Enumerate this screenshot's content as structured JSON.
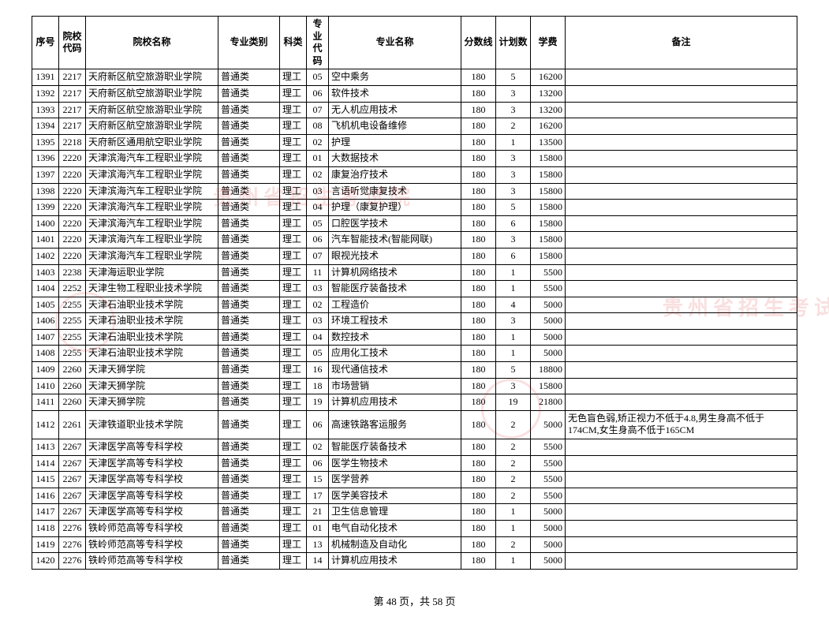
{
  "headers": {
    "seq": "序号",
    "code": "院校代码",
    "school": "院校名称",
    "type": "专业类别",
    "subj": "科类",
    "mcode": "专业代码",
    "major": "专业名称",
    "score": "分数线",
    "plan": "计划数",
    "fee": "学费",
    "note": "备注"
  },
  "rows": [
    {
      "seq": "1391",
      "code": "2217",
      "school": "天府新区航空旅游职业学院",
      "type": "普通类",
      "subj": "理工",
      "mcode": "05",
      "major": "空中乘务",
      "score": "180",
      "plan": "5",
      "fee": "16200",
      "note": ""
    },
    {
      "seq": "1392",
      "code": "2217",
      "school": "天府新区航空旅游职业学院",
      "type": "普通类",
      "subj": "理工",
      "mcode": "06",
      "major": "软件技术",
      "score": "180",
      "plan": "3",
      "fee": "13200",
      "note": ""
    },
    {
      "seq": "1393",
      "code": "2217",
      "school": "天府新区航空旅游职业学院",
      "type": "普通类",
      "subj": "理工",
      "mcode": "07",
      "major": "无人机应用技术",
      "score": "180",
      "plan": "3",
      "fee": "13200",
      "note": ""
    },
    {
      "seq": "1394",
      "code": "2217",
      "school": "天府新区航空旅游职业学院",
      "type": "普通类",
      "subj": "理工",
      "mcode": "08",
      "major": "飞机机电设备维修",
      "score": "180",
      "plan": "2",
      "fee": "16200",
      "note": ""
    },
    {
      "seq": "1395",
      "code": "2218",
      "school": "天府新区通用航空职业学院",
      "type": "普通类",
      "subj": "理工",
      "mcode": "02",
      "major": "护理",
      "score": "180",
      "plan": "1",
      "fee": "13500",
      "note": ""
    },
    {
      "seq": "1396",
      "code": "2220",
      "school": "天津滨海汽车工程职业学院",
      "type": "普通类",
      "subj": "理工",
      "mcode": "01",
      "major": "大数据技术",
      "score": "180",
      "plan": "3",
      "fee": "15800",
      "note": ""
    },
    {
      "seq": "1397",
      "code": "2220",
      "school": "天津滨海汽车工程职业学院",
      "type": "普通类",
      "subj": "理工",
      "mcode": "02",
      "major": "康复治疗技术",
      "score": "180",
      "plan": "3",
      "fee": "15800",
      "note": ""
    },
    {
      "seq": "1398",
      "code": "2220",
      "school": "天津滨海汽车工程职业学院",
      "type": "普通类",
      "subj": "理工",
      "mcode": "03",
      "major": "言语听觉康复技术",
      "score": "180",
      "plan": "3",
      "fee": "15800",
      "note": ""
    },
    {
      "seq": "1399",
      "code": "2220",
      "school": "天津滨海汽车工程职业学院",
      "type": "普通类",
      "subj": "理工",
      "mcode": "04",
      "major": "护理（康复护理）",
      "score": "180",
      "plan": "5",
      "fee": "15800",
      "note": ""
    },
    {
      "seq": "1400",
      "code": "2220",
      "school": "天津滨海汽车工程职业学院",
      "type": "普通类",
      "subj": "理工",
      "mcode": "05",
      "major": "口腔医学技术",
      "score": "180",
      "plan": "6",
      "fee": "15800",
      "note": ""
    },
    {
      "seq": "1401",
      "code": "2220",
      "school": "天津滨海汽车工程职业学院",
      "type": "普通类",
      "subj": "理工",
      "mcode": "06",
      "major": "汽车智能技术(智能网联)",
      "score": "180",
      "plan": "3",
      "fee": "15800",
      "note": ""
    },
    {
      "seq": "1402",
      "code": "2220",
      "school": "天津滨海汽车工程职业学院",
      "type": "普通类",
      "subj": "理工",
      "mcode": "07",
      "major": "眼视光技术",
      "score": "180",
      "plan": "6",
      "fee": "15800",
      "note": ""
    },
    {
      "seq": "1403",
      "code": "2238",
      "school": "天津海运职业学院",
      "type": "普通类",
      "subj": "理工",
      "mcode": "11",
      "major": "计算机网络技术",
      "score": "180",
      "plan": "1",
      "fee": "5500",
      "note": ""
    },
    {
      "seq": "1404",
      "code": "2252",
      "school": "天津生物工程职业技术学院",
      "type": "普通类",
      "subj": "理工",
      "mcode": "03",
      "major": "智能医疗装备技术",
      "score": "180",
      "plan": "1",
      "fee": "5500",
      "note": ""
    },
    {
      "seq": "1405",
      "code": "2255",
      "school": "天津石油职业技术学院",
      "type": "普通类",
      "subj": "理工",
      "mcode": "02",
      "major": "工程造价",
      "score": "180",
      "plan": "4",
      "fee": "5000",
      "note": ""
    },
    {
      "seq": "1406",
      "code": "2255",
      "school": "天津石油职业技术学院",
      "type": "普通类",
      "subj": "理工",
      "mcode": "03",
      "major": "环境工程技术",
      "score": "180",
      "plan": "3",
      "fee": "5000",
      "note": ""
    },
    {
      "seq": "1407",
      "code": "2255",
      "school": "天津石油职业技术学院",
      "type": "普通类",
      "subj": "理工",
      "mcode": "04",
      "major": "数控技术",
      "score": "180",
      "plan": "1",
      "fee": "5000",
      "note": ""
    },
    {
      "seq": "1408",
      "code": "2255",
      "school": "天津石油职业技术学院",
      "type": "普通类",
      "subj": "理工",
      "mcode": "05",
      "major": "应用化工技术",
      "score": "180",
      "plan": "1",
      "fee": "5000",
      "note": ""
    },
    {
      "seq": "1409",
      "code": "2260",
      "school": "天津天狮学院",
      "type": "普通类",
      "subj": "理工",
      "mcode": "16",
      "major": "现代通信技术",
      "score": "180",
      "plan": "5",
      "fee": "18800",
      "note": ""
    },
    {
      "seq": "1410",
      "code": "2260",
      "school": "天津天狮学院",
      "type": "普通类",
      "subj": "理工",
      "mcode": "18",
      "major": "市场营销",
      "score": "180",
      "plan": "3",
      "fee": "15800",
      "note": ""
    },
    {
      "seq": "1411",
      "code": "2260",
      "school": "天津天狮学院",
      "type": "普通类",
      "subj": "理工",
      "mcode": "19",
      "major": "计算机应用技术",
      "score": "180",
      "plan": "19",
      "fee": "21800",
      "note": ""
    },
    {
      "seq": "1412",
      "code": "2261",
      "school": "天津铁道职业技术学院",
      "type": "普通类",
      "subj": "理工",
      "mcode": "06",
      "major": "高速铁路客运服务",
      "score": "180",
      "plan": "2",
      "fee": "5000",
      "note": "无色盲色弱,矫正视力不低于4.8,男生身高不低于174CM,女生身高不低于165CM"
    },
    {
      "seq": "1413",
      "code": "2267",
      "school": "天津医学高等专科学校",
      "type": "普通类",
      "subj": "理工",
      "mcode": "02",
      "major": "智能医疗装备技术",
      "score": "180",
      "plan": "2",
      "fee": "5500",
      "note": ""
    },
    {
      "seq": "1414",
      "code": "2267",
      "school": "天津医学高等专科学校",
      "type": "普通类",
      "subj": "理工",
      "mcode": "06",
      "major": "医学生物技术",
      "score": "180",
      "plan": "2",
      "fee": "5500",
      "note": ""
    },
    {
      "seq": "1415",
      "code": "2267",
      "school": "天津医学高等专科学校",
      "type": "普通类",
      "subj": "理工",
      "mcode": "15",
      "major": "医学营养",
      "score": "180",
      "plan": "2",
      "fee": "5500",
      "note": ""
    },
    {
      "seq": "1416",
      "code": "2267",
      "school": "天津医学高等专科学校",
      "type": "普通类",
      "subj": "理工",
      "mcode": "17",
      "major": "医学美容技术",
      "score": "180",
      "plan": "2",
      "fee": "5500",
      "note": ""
    },
    {
      "seq": "1417",
      "code": "2267",
      "school": "天津医学高等专科学校",
      "type": "普通类",
      "subj": "理工",
      "mcode": "21",
      "major": "卫生信息管理",
      "score": "180",
      "plan": "1",
      "fee": "5000",
      "note": ""
    },
    {
      "seq": "1418",
      "code": "2276",
      "school": "铁岭师范高等专科学校",
      "type": "普通类",
      "subj": "理工",
      "mcode": "01",
      "major": "电气自动化技术",
      "score": "180",
      "plan": "1",
      "fee": "5000",
      "note": ""
    },
    {
      "seq": "1419",
      "code": "2276",
      "school": "铁岭师范高等专科学校",
      "type": "普通类",
      "subj": "理工",
      "mcode": "13",
      "major": "机械制造及自动化",
      "score": "180",
      "plan": "2",
      "fee": "5000",
      "note": ""
    },
    {
      "seq": "1420",
      "code": "2276",
      "school": "铁岭师范高等专科学校",
      "type": "普通类",
      "subj": "理工",
      "mcode": "14",
      "major": "计算机应用技术",
      "score": "180",
      "plan": "1",
      "fee": "5000",
      "note": ""
    }
  ],
  "footer": "第 48 页，共 58 页",
  "watermark_text_left": "贵州省招生考试院",
  "watermark_text_right": "贵州省招生考试院"
}
